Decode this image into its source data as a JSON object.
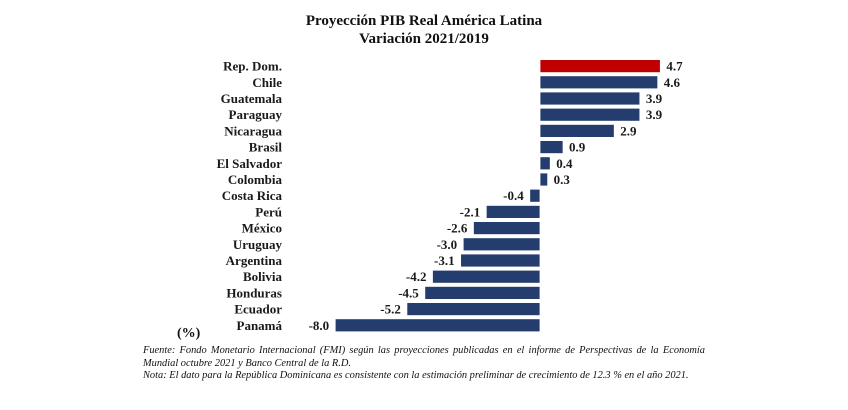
{
  "chart_data": {
    "type": "bar",
    "orientation": "horizontal",
    "title": "Proyección PIB Real América Latina",
    "subtitle": "Variación 2021/2019",
    "unit_label": "(%)",
    "categories": [
      "Rep. Dom.",
      "Chile",
      "Guatemala",
      "Paraguay",
      "Nicaragua",
      "Brasil",
      "El Salvador",
      "Colombia",
      "Costa Rica",
      "Perú",
      "México",
      "Uruguay",
      "Argentina",
      "Bolivia",
      "Honduras",
      "Ecuador",
      "Panamá"
    ],
    "values": [
      4.7,
      4.6,
      3.9,
      3.9,
      2.9,
      0.9,
      0.4,
      0.3,
      -0.4,
      -2.1,
      -2.6,
      -3.0,
      -3.1,
      -4.2,
      -4.5,
      -5.2,
      -8.0
    ],
    "value_labels": [
      "4.7",
      "4.6",
      "3.9",
      "3.9",
      "2.9",
      "0.9",
      "0.4",
      "0.3",
      "-0.4",
      "-2.1",
      "-2.6",
      "-3.0",
      "-3.1",
      "-4.2",
      "-4.5",
      "-5.2",
      "-8.0"
    ],
    "highlight_category": "Rep. Dom.",
    "colors": {
      "default": "#243c6e",
      "highlight": "#c00000",
      "edge": "#ffffff"
    },
    "xlim": [
      -8.0,
      4.7
    ],
    "xlabel": "",
    "ylabel": "",
    "grid": false,
    "legend": "none"
  },
  "footnotes": {
    "source": "Fuente: Fondo Monetario Internacional (FMI) según las proyecciones publicadas en el informe de Perspectivas de la Economía Mundial octubre 2021 y Banco Central de la R.D.",
    "note": "Nota: El dato para la República Dominicana es consistente con la estimación preliminar de crecimiento de 12.3 % en el año 2021."
  }
}
